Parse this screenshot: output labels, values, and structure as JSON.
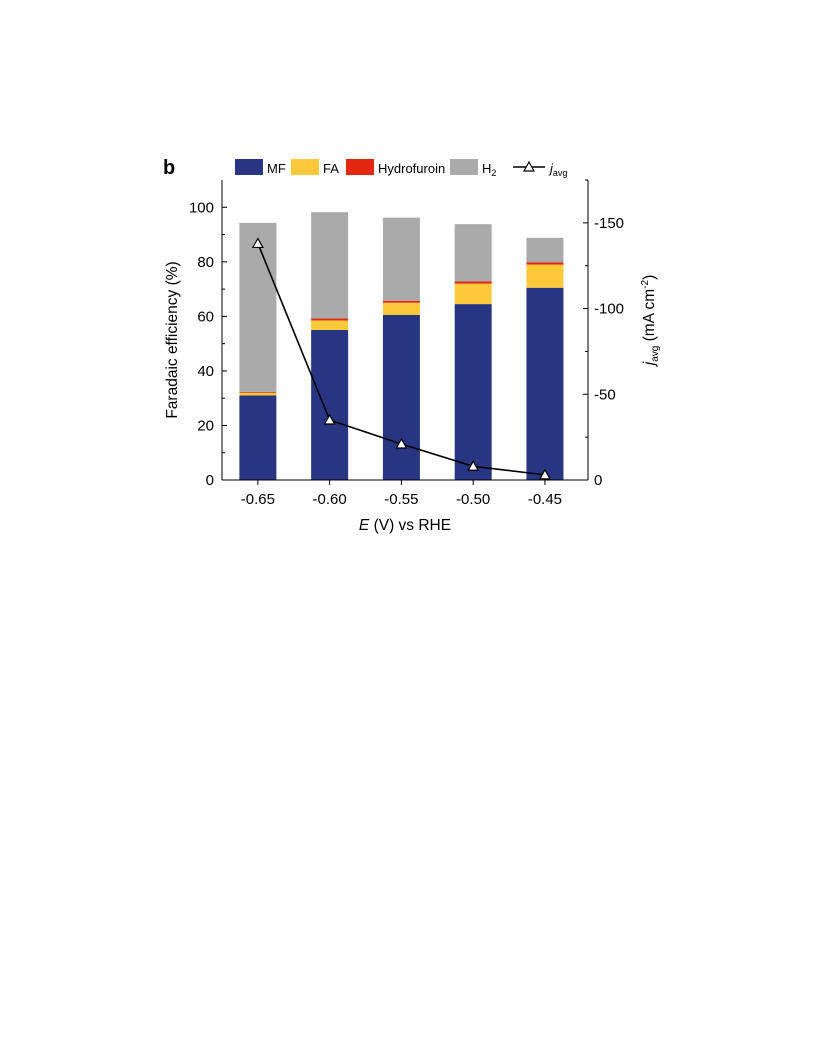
{
  "panel_label": "b",
  "chart_data": {
    "type": "bar",
    "stacked": true,
    "categories": [
      "-0.65",
      "-0.60",
      "-0.55",
      "-0.50",
      "-0.45"
    ],
    "x_values": [
      -0.65,
      -0.6,
      -0.55,
      -0.5,
      -0.45
    ],
    "xlabel": {
      "italic": "E",
      "rest": " (V) vs RHE"
    },
    "ylabel": "Faradaic efficiency (%)",
    "ylim": [
      0,
      110
    ],
    "yticks": [
      0,
      20,
      40,
      60,
      80,
      100
    ],
    "y2label": {
      "italic": "j",
      "sub": "avg",
      "rest": " (mA cm",
      "sup": "-2",
      "end": ")"
    },
    "y2lim": [
      0,
      -175
    ],
    "y2ticks": [
      0,
      -50,
      -100,
      -150
    ],
    "y2tick_labels": [
      "0",
      "-50",
      "-100",
      "-150"
    ],
    "series": [
      {
        "name": "MF",
        "color": "#283583",
        "values": [
          31.0,
          55.0,
          60.5,
          64.5,
          70.5
        ]
      },
      {
        "name": "FA",
        "color": "#fcc93a",
        "values": [
          1.0,
          3.5,
          4.5,
          7.5,
          8.5
        ]
      },
      {
        "name": "Hydrofuroin",
        "color": "#e3260f",
        "values": [
          0.3,
          0.7,
          0.7,
          0.8,
          0.8
        ]
      },
      {
        "name": "H",
        "name_sub": "2",
        "color": "#aaaaaa",
        "values": [
          62.0,
          39.0,
          30.5,
          21.0,
          9.0
        ]
      }
    ],
    "line_series": {
      "name": "j",
      "name_sub": "avg",
      "color": "#000000",
      "marker": "open-triangle",
      "axis": "right",
      "values": [
        -138,
        -35,
        -21,
        -8,
        -3
      ]
    },
    "grid": false,
    "legend_position": "top"
  }
}
